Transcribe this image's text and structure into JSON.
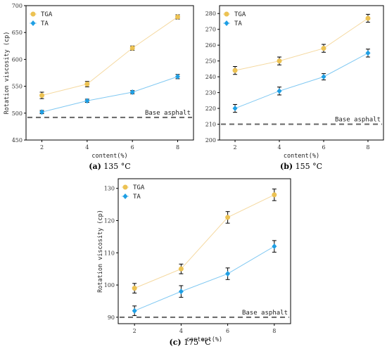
{
  "colors": {
    "tga_line": "#f5d9a0",
    "tga_marker": "#ecc253",
    "ta_line": "#7fc8f2",
    "ta_marker": "#1f9fe4",
    "baseline": "#666666",
    "error_bar": "#000000"
  },
  "chart_data": [
    {
      "type": "line",
      "caption_label": "(a)",
      "caption_text": "135 °C",
      "x": [
        2,
        4,
        6,
        8
      ],
      "xticks": [
        "2",
        "4",
        "6",
        "8"
      ],
      "xlabel": "content(%)",
      "ylabel": "Rotation viscosity (cp)",
      "ylim": [
        450,
        700
      ],
      "yticks": [
        "450",
        "500",
        "550",
        "600",
        "650",
        "700"
      ],
      "legend": "top-left",
      "series": [
        {
          "name": "TGA",
          "values": [
            533,
            554,
            621,
            679
          ],
          "errors": [
            6,
            5,
            4,
            4
          ]
        },
        {
          "name": "TA",
          "values": [
            502,
            523,
            539,
            568
          ],
          "errors": [
            3,
            3,
            3,
            4
          ]
        }
      ],
      "baseline": {
        "label": "Base asphalt",
        "value": 492
      }
    },
    {
      "type": "line",
      "caption_label": "(b)",
      "caption_text": "155 °C",
      "x": [
        2,
        4,
        6,
        8
      ],
      "xticks": [
        "2",
        "4",
        "6",
        "8"
      ],
      "xlabel": "content(%)",
      "ylabel": "",
      "ylim": [
        200,
        285
      ],
      "yticks": [
        "200",
        "210",
        "220",
        "230",
        "240",
        "250",
        "260",
        "270",
        "280"
      ],
      "legend": "top-left",
      "series": [
        {
          "name": "TGA",
          "values": [
            244,
            250,
            258,
            277
          ],
          "errors": [
            2.5,
            2.5,
            2.5,
            2.5
          ]
        },
        {
          "name": "TA",
          "values": [
            220,
            231,
            240,
            255
          ],
          "errors": [
            2.5,
            2.5,
            2,
            2.5
          ]
        }
      ],
      "baseline": {
        "label": "Base asphalt",
        "value": 210
      }
    },
    {
      "type": "line",
      "caption_label": "(c)",
      "caption_text": "175 °C",
      "x": [
        2,
        4,
        6,
        8
      ],
      "xticks": [
        "2",
        "4",
        "6",
        "8"
      ],
      "xlabel": "content(%)",
      "ylabel": "Rotation viscosity (cp)",
      "ylim": [
        88,
        133
      ],
      "yticks": [
        "90",
        "100",
        "110",
        "120",
        "130"
      ],
      "legend": "top-left",
      "series": [
        {
          "name": "TGA",
          "values": [
            99,
            105,
            121,
            128
          ],
          "errors": [
            1.5,
            1.5,
            1.8,
            1.8
          ]
        },
        {
          "name": "TA",
          "values": [
            92,
            98,
            103.5,
            112
          ],
          "errors": [
            1.5,
            1.8,
            1.8,
            1.8
          ]
        }
      ],
      "baseline": {
        "label": "Base asphalt",
        "value": 90
      }
    }
  ]
}
